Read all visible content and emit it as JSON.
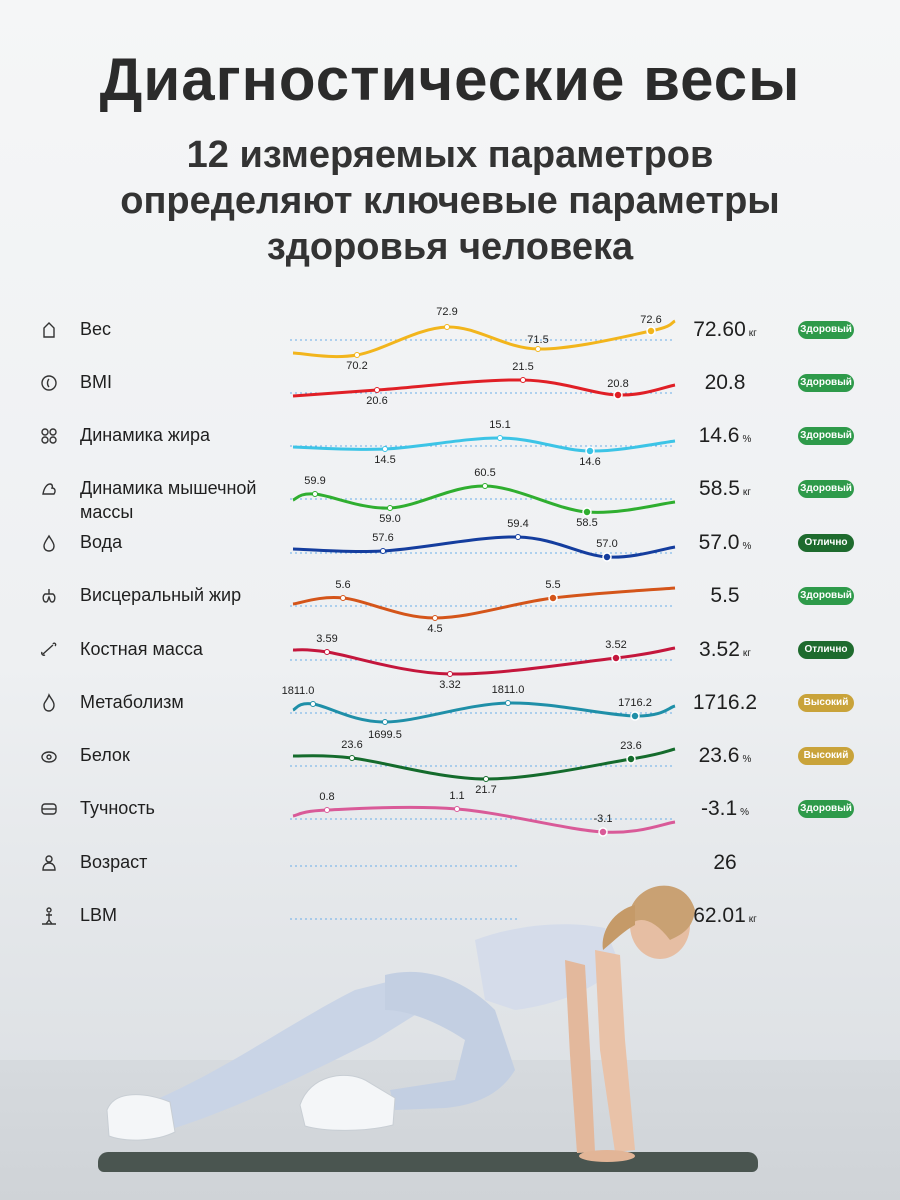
{
  "header": {
    "title": "Диагностические весы",
    "subtitle_lines": [
      "12 измеряемых параметров",
      "определяют ключевые параметры",
      "здоровья человека"
    ]
  },
  "rows": [
    {
      "label": "Вес",
      "value": "72.60",
      "unit": "кг",
      "badge": "Здоровый",
      "badge_kind": "green",
      "icon": "scale-icon",
      "color": "#f2b51c",
      "points": [
        {
          "v": "70.2"
        },
        {
          "v": "72.9"
        },
        {
          "v": "71.5"
        },
        {
          "v": "72.6"
        }
      ]
    },
    {
      "label": "BMI",
      "value": "20.8",
      "unit": "",
      "badge": "Здоровый",
      "badge_kind": "green",
      "icon": "bmi-icon",
      "color": "#e01f26",
      "points": [
        {
          "v": "20.6"
        },
        {
          "v": "21.5"
        },
        {
          "v": "20.8"
        }
      ]
    },
    {
      "label": "Динамика жира",
      "value": "14.6",
      "unit": "%",
      "badge": "Здоровый",
      "badge_kind": "green",
      "icon": "fat-icon",
      "color": "#3cc4e6",
      "points": [
        {
          "v": "14.5"
        },
        {
          "v": "15.1"
        },
        {
          "v": "14.6"
        }
      ]
    },
    {
      "label": "Динамика мышечной массы",
      "value": "58.5",
      "unit": "кг",
      "badge": "Здоровый",
      "badge_kind": "green",
      "icon": "muscle-icon",
      "color": "#2fae2f",
      "points": [
        {
          "v": "59.9"
        },
        {
          "v": "59.0"
        },
        {
          "v": "60.5"
        },
        {
          "v": "58.5"
        }
      ]
    },
    {
      "label": "Вода",
      "value": "57.0",
      "unit": "%",
      "badge": "Отлично",
      "badge_kind": "dark",
      "icon": "water-drop-icon",
      "color": "#143d9e",
      "points": [
        {
          "v": "57.6"
        },
        {
          "v": "59.4"
        },
        {
          "v": "57.0"
        }
      ]
    },
    {
      "label": "Висцеральный жир",
      "value": "5.5",
      "unit": "",
      "badge": "Здоровый",
      "badge_kind": "green",
      "icon": "visceral-icon",
      "color": "#d4551a",
      "points": [
        {
          "v": "5.6"
        },
        {
          "v": "4.5"
        },
        {
          "v": "5.5"
        }
      ]
    },
    {
      "label": "Костная масса",
      "value": "3.52",
      "unit": "кг",
      "badge": "Отлично",
      "badge_kind": "dark",
      "icon": "bone-icon",
      "color": "#c4163c",
      "points": [
        {
          "v": "3.59"
        },
        {
          "v": "3.32"
        },
        {
          "v": "3.52"
        }
      ]
    },
    {
      "label": "Метаболизм",
      "value": "1716.2",
      "unit": "",
      "badge": "Высокий",
      "badge_kind": "gold",
      "icon": "flame-icon",
      "color": "#1f8fa8",
      "points": [
        {
          "v": "1811.0"
        },
        {
          "v": "1699.5"
        },
        {
          "v": "1811.0"
        },
        {
          "v": "1716.2"
        }
      ]
    },
    {
      "label": "Белок",
      "value": "23.6",
      "unit": "%",
      "badge": "Высокий",
      "badge_kind": "gold",
      "icon": "protein-icon",
      "color": "#146b2c",
      "points": [
        {
          "v": "23.6"
        },
        {
          "v": "21.7"
        },
        {
          "v": "23.6"
        }
      ]
    },
    {
      "label": "Тучность",
      "value": "-3.1",
      "unit": "%",
      "badge": "Здоровый",
      "badge_kind": "green",
      "icon": "obesity-icon",
      "color": "#d95a98",
      "points": [
        {
          "v": "0.8"
        },
        {
          "v": "1.1"
        },
        {
          "v": "-3.1"
        }
      ]
    },
    {
      "label": "Возраст",
      "value": "26",
      "unit": "",
      "badge": "",
      "badge_kind": "",
      "icon": "person-icon",
      "color": "#5aa9e6",
      "points": []
    },
    {
      "label": "LBM",
      "value": "62.01",
      "unit": "кг",
      "badge": "",
      "badge_kind": "",
      "icon": "lbm-icon",
      "color": "#5aa9e6",
      "points": []
    }
  ]
}
